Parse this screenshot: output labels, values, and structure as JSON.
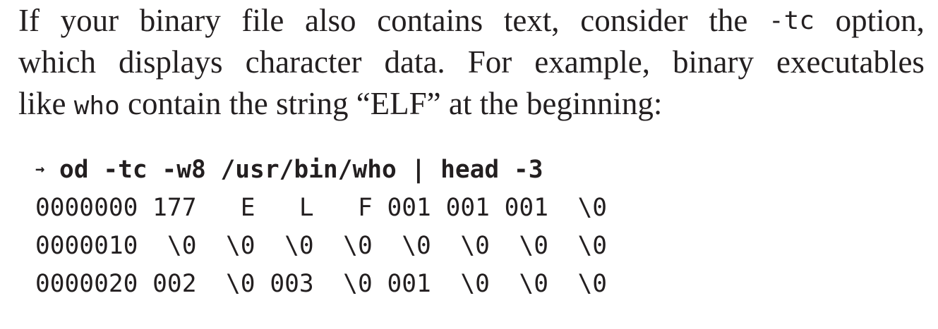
{
  "paragraph": {
    "line1": {
      "words": [
        "If",
        "your",
        "binary",
        "file",
        "also",
        "contains",
        "text,",
        "consider",
        "the"
      ],
      "code": "-tc",
      "tail": "option,"
    },
    "line2": {
      "words": [
        "which",
        "displays",
        "character",
        "data.",
        "For",
        "example,",
        "binary",
        "executables"
      ]
    },
    "line3": {
      "lead": "like",
      "code": "who",
      "tail": "contain the string “ELF” at the beginning:"
    }
  },
  "terminal": {
    "prompt": "→",
    "command": "od -tc -w8 /usr/bin/who | head -3",
    "output": [
      "0000000 177   E   L   F 001 001 001  \\0",
      "0000010  \\0  \\0  \\0  \\0  \\0  \\0  \\0  \\0",
      "0000020 002  \\0 003  \\0 001  \\0  \\0  \\0"
    ]
  }
}
